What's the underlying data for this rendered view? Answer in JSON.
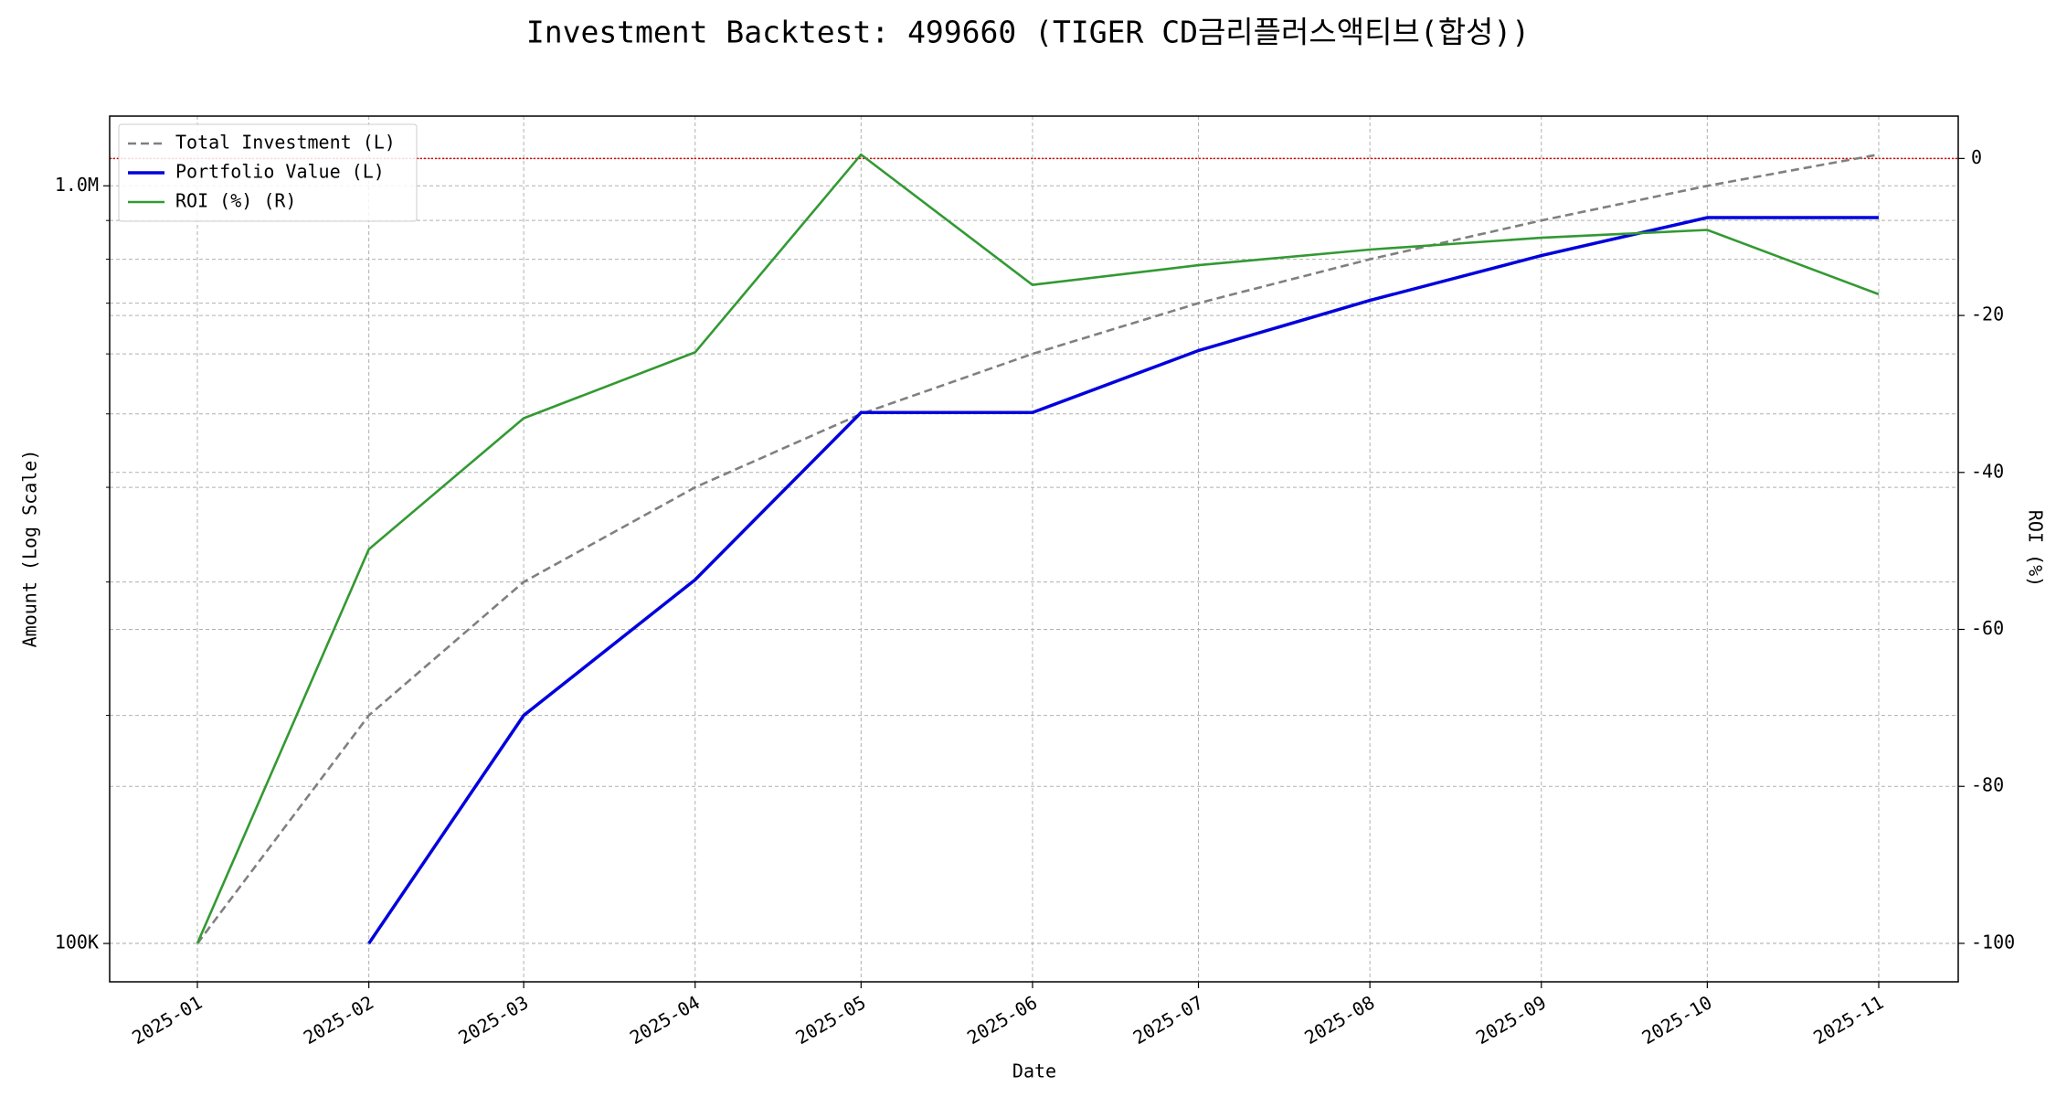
{
  "chart_data": {
    "type": "line",
    "title": "Investment Backtest: 499660 (TIGER CD금리플러스액티브(합성))",
    "x_label": "Date",
    "y_label": "Amount (Log Scale)",
    "y2_label": "ROI (%)",
    "x": [
      "2025-01",
      "2025-02",
      "2025-03",
      "2025-04",
      "2025-05",
      "2025-06",
      "2025-07",
      "2025-08",
      "2025-09",
      "2025-10",
      "2025-11"
    ],
    "series": [
      {
        "name": "Total Investment (L)",
        "color": "#808080",
        "linestyle": "dashed",
        "axis": "y",
        "values": [
          100000,
          200000,
          300000,
          400000,
          500000,
          600000,
          700000,
          800000,
          900000,
          1000000,
          1100000
        ]
      },
      {
        "name": "Portfolio Value (L)",
        "color": "#0000dd",
        "linestyle": "solid",
        "axis": "y",
        "values": [
          null,
          100000,
          200000,
          302000,
          502000,
          502000,
          606000,
          706000,
          809000,
          908000,
          908000
        ]
      },
      {
        "name": "ROI (%) (R)",
        "color": "#339933",
        "linestyle": "solid",
        "axis": "y2",
        "values": [
          -100,
          -49.8,
          -33.1,
          -24.7,
          0.5,
          -16.1,
          -13.6,
          -11.6,
          -10.1,
          -9.1,
          -17.3
        ]
      }
    ],
    "log_scale_y": true,
    "ylim": [
      89000,
      1236000
    ],
    "yticks": [
      {
        "value": 100000,
        "label": "100K"
      },
      {
        "value": 1000000,
        "label": "1.0M"
      }
    ],
    "yminorticks": [
      200000,
      300000,
      400000,
      500000,
      600000,
      700000,
      800000,
      900000
    ],
    "y2lim": [
      -104.9,
      5.4
    ],
    "y2ticks": [
      0,
      -20,
      -40,
      -60,
      -80,
      -100
    ],
    "reference_line": {
      "axis": "y2",
      "value": 0,
      "color": "#dd0000"
    },
    "grid": true,
    "legend": "upper left",
    "y_color": "#0000dd",
    "y2_color": "#339933"
  }
}
